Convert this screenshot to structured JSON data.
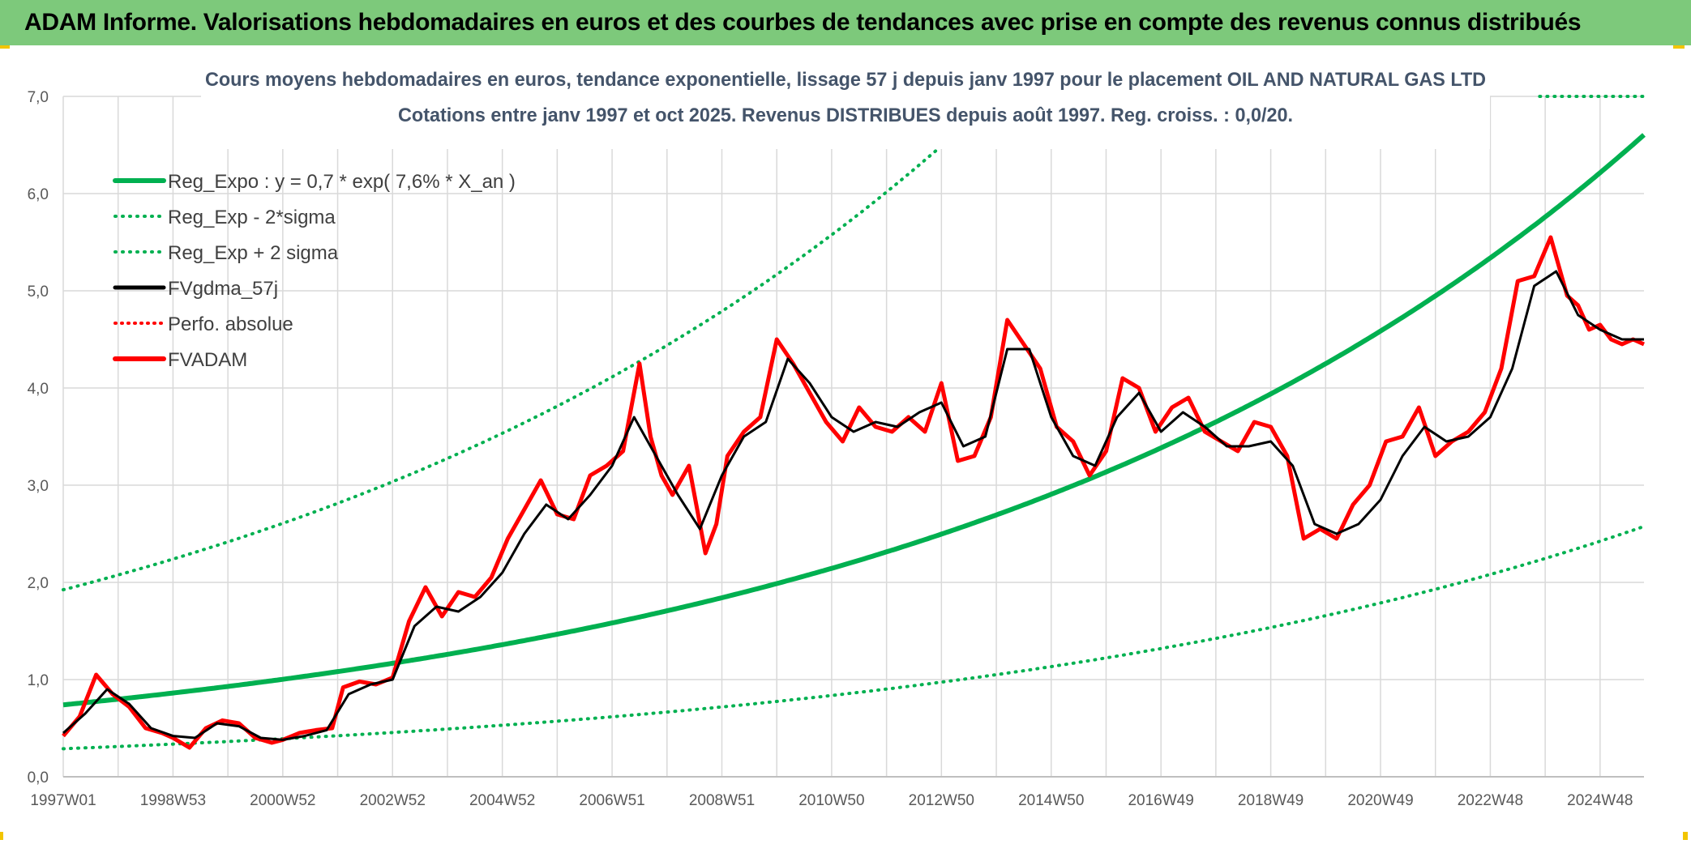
{
  "header": {
    "title": "ADAM Informe. Valorisations hebdomadaires en euros et des courbes de tendances avec prise en compte des revenus connus distribués"
  },
  "colors": {
    "header_bg": "#7dc97b",
    "corner_accent": "#f2c500",
    "trend": "#00b050",
    "smooth": "#000000",
    "price": "#ff0000",
    "grid": "#d9d9d9"
  },
  "chart_data": {
    "type": "line",
    "title_line1": "Cours moyens hebdomadaires en euros, tendance exponentielle, lissage 57 j depuis janv 1997 pour le placement OIL AND NATURAL GAS LTD",
    "title_line2": "Cotations entre janv 1997 et oct 2025. Revenus DISTRIBUES depuis août 1997. Reg. croiss. : 0,0/20.",
    "ylim": [
      0,
      7
    ],
    "yticks": [
      "0,0",
      "1,0",
      "2,0",
      "3,0",
      "4,0",
      "5,0",
      "6,0",
      "7,0"
    ],
    "xlim": [
      1997.0,
      2025.8
    ],
    "xticks": [
      {
        "label": "1997W01",
        "x": 1997.0
      },
      {
        "label": "1998W53",
        "x": 1999.0
      },
      {
        "label": "2000W52",
        "x": 2001.0
      },
      {
        "label": "2002W52",
        "x": 2003.0
      },
      {
        "label": "2004W52",
        "x": 2005.0
      },
      {
        "label": "2006W51",
        "x": 2007.0
      },
      {
        "label": "2008W51",
        "x": 2009.0
      },
      {
        "label": "2010W50",
        "x": 2011.0
      },
      {
        "label": "2012W50",
        "x": 2013.0
      },
      {
        "label": "2014W50",
        "x": 2015.0
      },
      {
        "label": "2016W49",
        "x": 2017.0
      },
      {
        "label": "2018W49",
        "x": 2019.0
      },
      {
        "label": "2020W49",
        "x": 2021.0
      },
      {
        "label": "2022W48",
        "x": 2023.0
      },
      {
        "label": "2024W48",
        "x": 2025.0
      }
    ],
    "legend": [
      {
        "label": "Reg_Expo : y = 0,7 * exp( 7,6% *  X_an )",
        "style": "thick-green"
      },
      {
        "label": "Reg_Exp - 2*sigma",
        "style": "dotted-green"
      },
      {
        "label": "Reg_Exp + 2 sigma",
        "style": "dotted-green"
      },
      {
        "label": "FVgdma_57j",
        "style": "black"
      },
      {
        "label": "Perfo. absolue",
        "style": "dotted-red"
      },
      {
        "label": "FVADAM",
        "style": "red"
      }
    ],
    "trend": {
      "a": 0.74,
      "rate": 0.076,
      "lower_factor": 0.39,
      "upper_factor": 2.6
    },
    "series": [
      {
        "name": "FVADAM",
        "x": [
          1997.0,
          1997.3,
          1997.6,
          1997.9,
          1998.2,
          1998.5,
          1998.8,
          1999.0,
          1999.3,
          1999.6,
          1999.9,
          2000.2,
          2000.5,
          2000.8,
          2001.0,
          2001.3,
          2001.6,
          2001.9,
          2002.1,
          2002.4,
          2002.7,
          2003.0,
          2003.3,
          2003.6,
          2003.9,
          2004.2,
          2004.5,
          2004.8,
          2005.1,
          2005.4,
          2005.7,
          2006.0,
          2006.3,
          2006.6,
          2006.9,
          2007.2,
          2007.5,
          2007.7,
          2007.9,
          2008.1,
          2008.4,
          2008.7,
          2008.9,
          2009.1,
          2009.4,
          2009.7,
          2010.0,
          2010.3,
          2010.6,
          2010.9,
          2011.2,
          2011.5,
          2011.8,
          2012.1,
          2012.4,
          2012.7,
          2013.0,
          2013.3,
          2013.6,
          2013.9,
          2014.2,
          2014.5,
          2014.8,
          2015.1,
          2015.4,
          2015.7,
          2016.0,
          2016.3,
          2016.6,
          2016.9,
          2017.2,
          2017.5,
          2017.8,
          2018.1,
          2018.4,
          2018.7,
          2019.0,
          2019.3,
          2019.6,
          2019.9,
          2020.2,
          2020.5,
          2020.8,
          2021.1,
          2021.4,
          2021.7,
          2022.0,
          2022.3,
          2022.6,
          2022.9,
          2023.2,
          2023.5,
          2023.8,
          2024.1,
          2024.4,
          2024.6,
          2024.8,
          2025.0,
          2025.2,
          2025.4,
          2025.6,
          2025.8
        ],
        "values": [
          0.42,
          0.62,
          1.05,
          0.85,
          0.72,
          0.5,
          0.45,
          0.4,
          0.3,
          0.5,
          0.58,
          0.55,
          0.4,
          0.35,
          0.38,
          0.45,
          0.48,
          0.5,
          0.92,
          0.98,
          0.95,
          1.02,
          1.6,
          1.95,
          1.65,
          1.9,
          1.85,
          2.05,
          2.45,
          2.75,
          3.05,
          2.7,
          2.65,
          3.1,
          3.2,
          3.35,
          4.25,
          3.5,
          3.1,
          2.9,
          3.2,
          2.3,
          2.6,
          3.3,
          3.55,
          3.7,
          4.5,
          4.25,
          3.95,
          3.65,
          3.45,
          3.8,
          3.6,
          3.55,
          3.7,
          3.55,
          4.05,
          3.25,
          3.3,
          3.7,
          4.7,
          4.45,
          4.2,
          3.6,
          3.45,
          3.1,
          3.35,
          4.1,
          4.0,
          3.55,
          3.8,
          3.9,
          3.55,
          3.45,
          3.35,
          3.65,
          3.6,
          3.3,
          2.45,
          2.55,
          2.45,
          2.8,
          3.0,
          3.45,
          3.5,
          3.8,
          3.3,
          3.45,
          3.55,
          3.75,
          4.2,
          5.1,
          5.15,
          5.55,
          4.95,
          4.85,
          4.6,
          4.65,
          4.5,
          4.45,
          4.5,
          4.45
        ]
      },
      {
        "name": "FVgdma_57j",
        "x": [
          1997.0,
          1997.4,
          1997.8,
          1998.2,
          1998.6,
          1999.0,
          1999.4,
          1999.8,
          2000.2,
          2000.6,
          2001.0,
          2001.4,
          2001.8,
          2002.2,
          2002.6,
          2003.0,
          2003.4,
          2003.8,
          2004.2,
          2004.6,
          2005.0,
          2005.4,
          2005.8,
          2006.2,
          2006.6,
          2007.0,
          2007.4,
          2007.8,
          2008.2,
          2008.6,
          2009.0,
          2009.4,
          2009.8,
          2010.2,
          2010.6,
          2011.0,
          2011.4,
          2011.8,
          2012.2,
          2012.6,
          2013.0,
          2013.4,
          2013.8,
          2014.2,
          2014.6,
          2015.0,
          2015.4,
          2015.8,
          2016.2,
          2016.6,
          2017.0,
          2017.4,
          2017.8,
          2018.2,
          2018.6,
          2019.0,
          2019.4,
          2019.8,
          2020.2,
          2020.6,
          2021.0,
          2021.4,
          2021.8,
          2022.2,
          2022.6,
          2023.0,
          2023.4,
          2023.8,
          2024.2,
          2024.6,
          2025.0,
          2025.4,
          2025.8
        ],
        "values": [
          0.45,
          0.65,
          0.9,
          0.75,
          0.5,
          0.42,
          0.4,
          0.55,
          0.52,
          0.4,
          0.38,
          0.42,
          0.48,
          0.85,
          0.95,
          1.0,
          1.55,
          1.75,
          1.7,
          1.85,
          2.1,
          2.5,
          2.8,
          2.65,
          2.9,
          3.2,
          3.7,
          3.3,
          2.9,
          2.55,
          3.1,
          3.5,
          3.65,
          4.3,
          4.05,
          3.7,
          3.55,
          3.65,
          3.6,
          3.75,
          3.85,
          3.4,
          3.5,
          4.4,
          4.4,
          3.7,
          3.3,
          3.2,
          3.7,
          3.95,
          3.55,
          3.75,
          3.6,
          3.4,
          3.4,
          3.45,
          3.2,
          2.6,
          2.5,
          2.6,
          2.85,
          3.3,
          3.6,
          3.45,
          3.5,
          3.7,
          4.2,
          5.05,
          5.2,
          4.75,
          4.6,
          4.5,
          4.5
        ]
      }
    ]
  }
}
